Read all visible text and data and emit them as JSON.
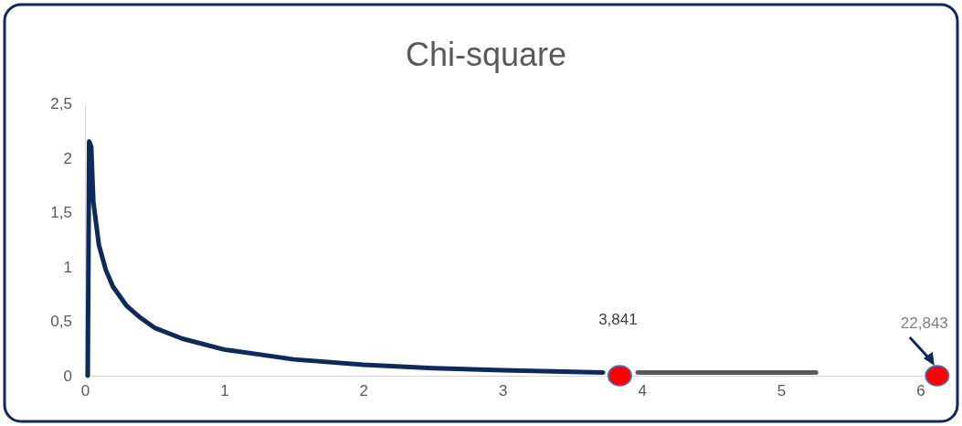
{
  "chart_data": {
    "type": "line",
    "title": "Chi-square",
    "xlim": [
      0,
      6.2
    ],
    "xticks": [
      0,
      1,
      2,
      3,
      4,
      5,
      6
    ],
    "ylim": [
      0,
      2.5
    ],
    "yticks": [
      0,
      {
        "value": 0.5,
        "label": "0,5"
      },
      1,
      {
        "value": 1.5,
        "label": "1,5"
      },
      2,
      {
        "value": 2.5,
        "label": "2,5"
      }
    ],
    "grid": false,
    "series": [
      {
        "color": "#0e2a5c",
        "x": [
          0.02,
          0.03,
          0.045,
          0.06,
          0.1,
          0.15,
          0.2,
          0.3,
          0.4,
          0.5,
          0.7,
          1,
          1.5,
          2,
          2.5,
          3,
          3.72
        ],
        "values": [
          0,
          2.15,
          2.1,
          1.6,
          1.2,
          0.97,
          0.82,
          0.64,
          0.53,
          0.44,
          0.34,
          0.24,
          0.15,
          0.1,
          0.07,
          0.05,
          0.03
        ]
      },
      {
        "color": "#595959",
        "x": [
          3.97,
          5.25
        ],
        "values": [
          0.03,
          0.03
        ]
      },
      {
        "type": "scatter",
        "color": "#ff0000",
        "marker": "circle",
        "x": [
          3.841,
          6.12
        ],
        "values": [
          0,
          0
        ]
      }
    ],
    "annotations": [
      "3,841",
      "22,843"
    ]
  }
}
